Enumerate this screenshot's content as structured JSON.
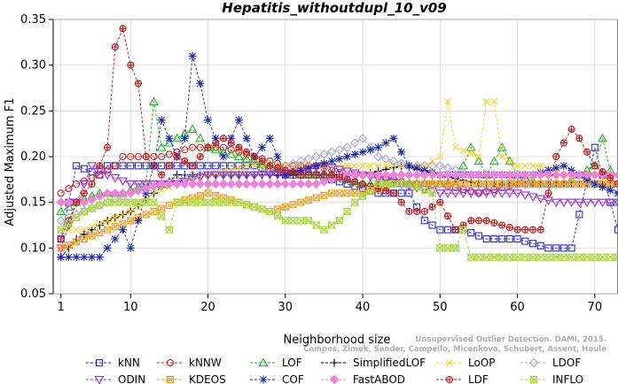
{
  "chart_data": {
    "type": "line",
    "title": "Hepatitis_withoutdupl_10_v09",
    "xlabel": "Neighborhood size",
    "ylabel": "Adjusted Maximum F1",
    "xlim": [
      0,
      73
    ],
    "ylim": [
      0.05,
      0.35
    ],
    "xticks": [
      "1",
      "10",
      "20",
      "30",
      "40",
      "50",
      "60",
      "70"
    ],
    "yticks": [
      "0.05",
      "0.10",
      "0.15",
      "0.20",
      "0.25",
      "0.30",
      "0.35"
    ],
    "watermark": [
      "Campos, Zimek, Sander, Campello, Micenkova, Schubert, Assent, Houle",
      "Unsupervised Outlier Detection. DAMI, 2015."
    ],
    "legend_position": "bottom",
    "series": [
      {
        "name": "kNN",
        "color": "#2b2bd6",
        "marker": "square",
        "anchors": [
          [
            1,
            0.11
          ],
          [
            3,
            0.19
          ],
          [
            6,
            0.18
          ],
          [
            7,
            0.19
          ],
          [
            9,
            0.19
          ],
          [
            12,
            0.19
          ],
          [
            15,
            0.19
          ],
          [
            18,
            0.19
          ],
          [
            22,
            0.19
          ],
          [
            26,
            0.19
          ],
          [
            30,
            0.18
          ],
          [
            34,
            0.18
          ],
          [
            38,
            0.17
          ],
          [
            42,
            0.16
          ],
          [
            46,
            0.16
          ],
          [
            48,
            0.13
          ],
          [
            50,
            0.12
          ],
          [
            53,
            0.12
          ],
          [
            56,
            0.11
          ],
          [
            60,
            0.11
          ],
          [
            64,
            0.1
          ],
          [
            67,
            0.1
          ],
          [
            70,
            0.21
          ],
          [
            73,
            0.12
          ]
        ]
      },
      {
        "name": "kNNW",
        "color": "#d62020",
        "marker": "circle",
        "anchors": [
          [
            1,
            0.16
          ],
          [
            3,
            0.17
          ],
          [
            6,
            0.18
          ],
          [
            8,
            0.19
          ],
          [
            9,
            0.2
          ],
          [
            11,
            0.2
          ],
          [
            14,
            0.2
          ],
          [
            18,
            0.21
          ],
          [
            22,
            0.21
          ],
          [
            26,
            0.2
          ],
          [
            30,
            0.19
          ],
          [
            34,
            0.19
          ],
          [
            38,
            0.18
          ],
          [
            42,
            0.18
          ],
          [
            46,
            0.17
          ],
          [
            50,
            0.17
          ],
          [
            55,
            0.16
          ],
          [
            60,
            0.17
          ],
          [
            65,
            0.17
          ],
          [
            70,
            0.17
          ],
          [
            73,
            0.17
          ]
        ]
      },
      {
        "name": "LOF",
        "color": "#22b522",
        "marker": "triangle-up",
        "anchors": [
          [
            1,
            0.14
          ],
          [
            3,
            0.15
          ],
          [
            6,
            0.16
          ],
          [
            9,
            0.16
          ],
          [
            12,
            0.17
          ],
          [
            13,
            0.26
          ],
          [
            14,
            0.21
          ],
          [
            16,
            0.22
          ],
          [
            18,
            0.23
          ],
          [
            20,
            0.21
          ],
          [
            24,
            0.2
          ],
          [
            28,
            0.19
          ],
          [
            32,
            0.18
          ],
          [
            36,
            0.18
          ],
          [
            40,
            0.17
          ],
          [
            44,
            0.17
          ],
          [
            48,
            0.17
          ],
          [
            52,
            0.17
          ],
          [
            54,
            0.21
          ],
          [
            56,
            0.18
          ],
          [
            58,
            0.21
          ],
          [
            60,
            0.18
          ],
          [
            63,
            0.17
          ],
          [
            66,
            0.17
          ],
          [
            68,
            0.18
          ],
          [
            70,
            0.19
          ],
          [
            71,
            0.22
          ],
          [
            73,
            0.15
          ]
        ]
      },
      {
        "name": "SimplifiedLOF",
        "color": "#000000",
        "marker": "plus",
        "anchors": [
          [
            1,
            0.09
          ],
          [
            3,
            0.11
          ],
          [
            5,
            0.12
          ],
          [
            7,
            0.13
          ],
          [
            10,
            0.14
          ],
          [
            13,
            0.16
          ],
          [
            16,
            0.18
          ],
          [
            20,
            0.18
          ],
          [
            25,
            0.18
          ],
          [
            30,
            0.18
          ],
          [
            35,
            0.18
          ],
          [
            40,
            0.18
          ],
          [
            45,
            0.19
          ],
          [
            50,
            0.18
          ],
          [
            55,
            0.17
          ],
          [
            60,
            0.17
          ],
          [
            65,
            0.17
          ],
          [
            70,
            0.17
          ],
          [
            73,
            0.17
          ]
        ]
      },
      {
        "name": "LoOP",
        "color": "#ffd11a",
        "marker": "x",
        "anchors": [
          [
            1,
            0.12
          ],
          [
            4,
            0.12
          ],
          [
            7,
            0.13
          ],
          [
            10,
            0.14
          ],
          [
            13,
            0.16
          ],
          [
            16,
            0.17
          ],
          [
            20,
            0.18
          ],
          [
            25,
            0.19
          ],
          [
            30,
            0.19
          ],
          [
            35,
            0.19
          ],
          [
            40,
            0.19
          ],
          [
            45,
            0.19
          ],
          [
            48,
            0.19
          ],
          [
            50,
            0.2
          ],
          [
            51,
            0.26
          ],
          [
            52,
            0.21
          ],
          [
            55,
            0.2
          ],
          [
            56,
            0.26
          ],
          [
            57,
            0.26
          ],
          [
            58,
            0.2
          ],
          [
            60,
            0.19
          ],
          [
            63,
            0.19
          ],
          [
            66,
            0.18
          ],
          [
            70,
            0.18
          ],
          [
            73,
            0.17
          ]
        ]
      },
      {
        "name": "LDOF",
        "color": "#a8a8d8",
        "marker": "diamond",
        "anchors": [
          [
            1,
            0.13
          ],
          [
            4,
            0.14
          ],
          [
            7,
            0.15
          ],
          [
            10,
            0.16
          ],
          [
            14,
            0.17
          ],
          [
            18,
            0.18
          ],
          [
            22,
            0.18
          ],
          [
            26,
            0.18
          ],
          [
            30,
            0.19
          ],
          [
            34,
            0.2
          ],
          [
            38,
            0.21
          ],
          [
            40,
            0.22
          ],
          [
            42,
            0.2
          ],
          [
            46,
            0.19
          ],
          [
            50,
            0.19
          ],
          [
            54,
            0.18
          ],
          [
            58,
            0.18
          ],
          [
            62,
            0.17
          ],
          [
            66,
            0.17
          ],
          [
            70,
            0.17
          ],
          [
            73,
            0.17
          ]
        ]
      },
      {
        "name": "ODIN",
        "color": "#9b30d8",
        "marker": "triangle-down",
        "anchors": [
          [
            1,
            0.1
          ],
          [
            3,
            0.15
          ],
          [
            5,
            0.19
          ],
          [
            7,
            0.18
          ],
          [
            10,
            0.17
          ],
          [
            13,
            0.17
          ],
          [
            16,
            0.17
          ],
          [
            20,
            0.18
          ],
          [
            25,
            0.18
          ],
          [
            30,
            0.18
          ],
          [
            35,
            0.19
          ],
          [
            40,
            0.18
          ],
          [
            45,
            0.17
          ],
          [
            50,
            0.16
          ],
          [
            55,
            0.16
          ],
          [
            60,
            0.16
          ],
          [
            65,
            0.15
          ],
          [
            70,
            0.15
          ],
          [
            73,
            0.15
          ]
        ]
      },
      {
        "name": "KDEOS",
        "color": "#f0a020",
        "marker": "square-x",
        "anchors": [
          [
            1,
            0.1
          ],
          [
            4,
            0.11
          ],
          [
            7,
            0.12
          ],
          [
            10,
            0.13
          ],
          [
            13,
            0.14
          ],
          [
            16,
            0.15
          ],
          [
            20,
            0.16
          ],
          [
            24,
            0.15
          ],
          [
            28,
            0.14
          ],
          [
            32,
            0.15
          ],
          [
            36,
            0.16
          ],
          [
            40,
            0.16
          ],
          [
            44,
            0.17
          ],
          [
            48,
            0.17
          ],
          [
            52,
            0.17
          ],
          [
            56,
            0.17
          ],
          [
            60,
            0.17
          ],
          [
            64,
            0.17
          ],
          [
            68,
            0.17
          ],
          [
            73,
            0.17
          ]
        ]
      },
      {
        "name": "COF",
        "color": "#1a2aa8",
        "marker": "star",
        "anchors": [
          [
            1,
            0.09
          ],
          [
            3,
            0.09
          ],
          [
            5,
            0.09
          ],
          [
            6,
            0.09
          ],
          [
            8,
            0.11
          ],
          [
            9,
            0.12
          ],
          [
            10,
            0.1
          ],
          [
            11,
            0.13
          ],
          [
            13,
            0.19
          ],
          [
            14,
            0.24
          ],
          [
            16,
            0.2
          ],
          [
            17,
            0.22
          ],
          [
            18,
            0.31
          ],
          [
            19,
            0.28
          ],
          [
            20,
            0.24
          ],
          [
            22,
            0.2
          ],
          [
            24,
            0.24
          ],
          [
            26,
            0.2
          ],
          [
            28,
            0.22
          ],
          [
            30,
            0.18
          ],
          [
            34,
            0.19
          ],
          [
            38,
            0.2
          ],
          [
            42,
            0.21
          ],
          [
            44,
            0.22
          ],
          [
            46,
            0.19
          ],
          [
            50,
            0.18
          ],
          [
            54,
            0.18
          ],
          [
            58,
            0.18
          ],
          [
            62,
            0.18
          ],
          [
            66,
            0.19
          ],
          [
            70,
            0.17
          ],
          [
            73,
            0.16
          ]
        ]
      },
      {
        "name": "FastABOD",
        "color": "#f080d8",
        "marker": "diamond-filled",
        "anchors": [
          [
            1,
            0.15
          ],
          [
            4,
            0.15
          ],
          [
            7,
            0.16
          ],
          [
            10,
            0.16
          ],
          [
            14,
            0.17
          ],
          [
            18,
            0.17
          ],
          [
            22,
            0.17
          ],
          [
            26,
            0.17
          ],
          [
            30,
            0.17
          ],
          [
            34,
            0.17
          ],
          [
            38,
            0.18
          ],
          [
            42,
            0.18
          ],
          [
            46,
            0.18
          ],
          [
            50,
            0.18
          ],
          [
            54,
            0.18
          ],
          [
            58,
            0.18
          ],
          [
            62,
            0.18
          ],
          [
            66,
            0.18
          ],
          [
            70,
            0.18
          ],
          [
            73,
            0.18
          ]
        ]
      },
      {
        "name": "LDF",
        "color": "#c01818",
        "marker": "circle-plus",
        "anchors": [
          [
            1,
            0.11
          ],
          [
            3,
            0.15
          ],
          [
            5,
            0.17
          ],
          [
            6,
            0.19
          ],
          [
            7,
            0.21
          ],
          [
            8,
            0.32
          ],
          [
            9,
            0.34
          ],
          [
            10,
            0.3
          ],
          [
            11,
            0.28
          ],
          [
            12,
            0.2
          ],
          [
            14,
            0.18
          ],
          [
            16,
            0.2
          ],
          [
            18,
            0.19
          ],
          [
            20,
            0.21
          ],
          [
            22,
            0.22
          ],
          [
            24,
            0.21
          ],
          [
            28,
            0.19
          ],
          [
            32,
            0.18
          ],
          [
            36,
            0.18
          ],
          [
            40,
            0.17
          ],
          [
            44,
            0.16
          ],
          [
            46,
            0.14
          ],
          [
            48,
            0.14
          ],
          [
            50,
            0.15
          ],
          [
            52,
            0.12
          ],
          [
            54,
            0.13
          ],
          [
            56,
            0.13
          ],
          [
            60,
            0.12
          ],
          [
            63,
            0.12
          ],
          [
            65,
            0.2
          ],
          [
            67,
            0.23
          ],
          [
            68,
            0.22
          ],
          [
            70,
            0.19
          ],
          [
            73,
            0.17
          ]
        ]
      },
      {
        "name": "INFLO",
        "color": "#a8d83a",
        "marker": "hourglass",
        "anchors": [
          [
            1,
            0.12
          ],
          [
            4,
            0.14
          ],
          [
            7,
            0.15
          ],
          [
            10,
            0.15
          ],
          [
            13,
            0.15
          ],
          [
            15,
            0.12
          ],
          [
            16,
            0.15
          ],
          [
            20,
            0.15
          ],
          [
            24,
            0.15
          ],
          [
            28,
            0.14
          ],
          [
            30,
            0.13
          ],
          [
            33,
            0.13
          ],
          [
            35,
            0.12
          ],
          [
            37,
            0.13
          ],
          [
            39,
            0.15
          ],
          [
            42,
            0.17
          ],
          [
            46,
            0.17
          ],
          [
            49,
            0.16
          ],
          [
            50,
            0.1
          ],
          [
            52,
            0.1
          ],
          [
            53,
            0.12
          ],
          [
            54,
            0.09
          ],
          [
            58,
            0.09
          ],
          [
            62,
            0.09
          ],
          [
            66,
            0.09
          ],
          [
            70,
            0.09
          ],
          [
            73,
            0.09
          ]
        ]
      }
    ]
  }
}
